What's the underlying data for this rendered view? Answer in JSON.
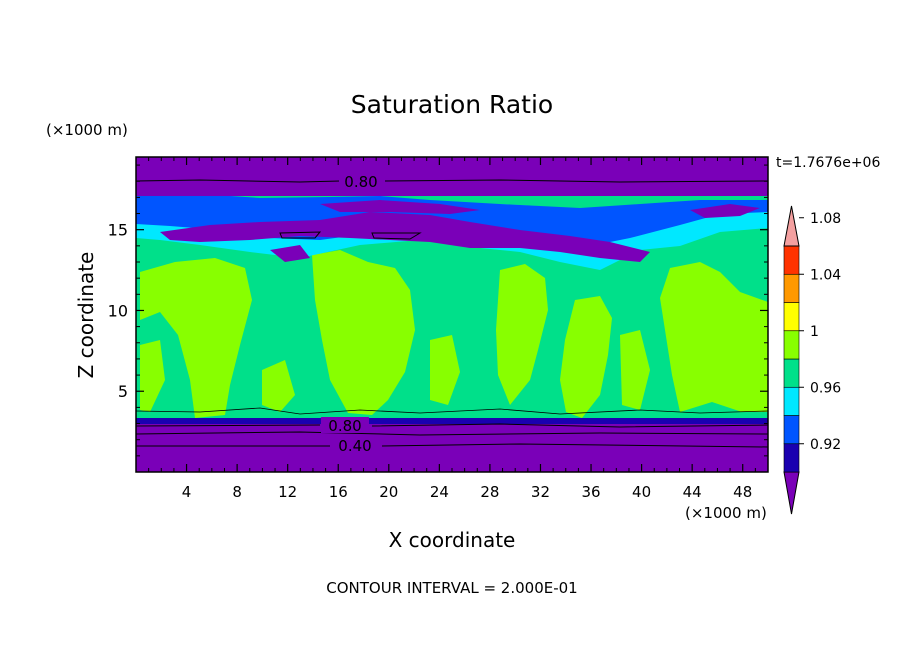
{
  "chart_data": {
    "type": "heatmap",
    "title": "Saturation Ratio",
    "xlabel": "X coordinate",
    "ylabel": "Z coordinate",
    "x_unit": "(×1000 m)",
    "y_unit": "(×1000 m)",
    "time_label": "t=1.7676e+06",
    "footer": "CONTOUR INTERVAL = 2.000E-01",
    "xlim": [
      0,
      50
    ],
    "ylim": [
      0,
      19.5
    ],
    "x_ticks": [
      "4",
      "8",
      "12",
      "16",
      "20",
      "24",
      "28",
      "32",
      "36",
      "40",
      "44",
      "48"
    ],
    "y_ticks": [
      "5",
      "10",
      "15"
    ],
    "colorbar": {
      "levels": [
        "0.92",
        "0.96",
        "1",
        "1.04",
        "1.08"
      ],
      "colors": [
        "#7a00b8",
        "#1a00b0",
        "#0055ff",
        "#00e8ff",
        "#00e08a",
        "#88ff00",
        "#ffff00",
        "#ff9900",
        "#ff3300",
        "#f4a0a0"
      ]
    },
    "contour_labels": [
      "0.80",
      "0.80",
      "0.40"
    ],
    "field": {
      "upper_dry_layer_z": [
        17.6,
        19.5
      ],
      "upper_moist_band_z": [
        12.5,
        17.6
      ],
      "mid_layer_z": [
        3.4,
        12.5
      ],
      "lower_dry_layer_z": [
        0,
        3.4
      ]
    }
  }
}
